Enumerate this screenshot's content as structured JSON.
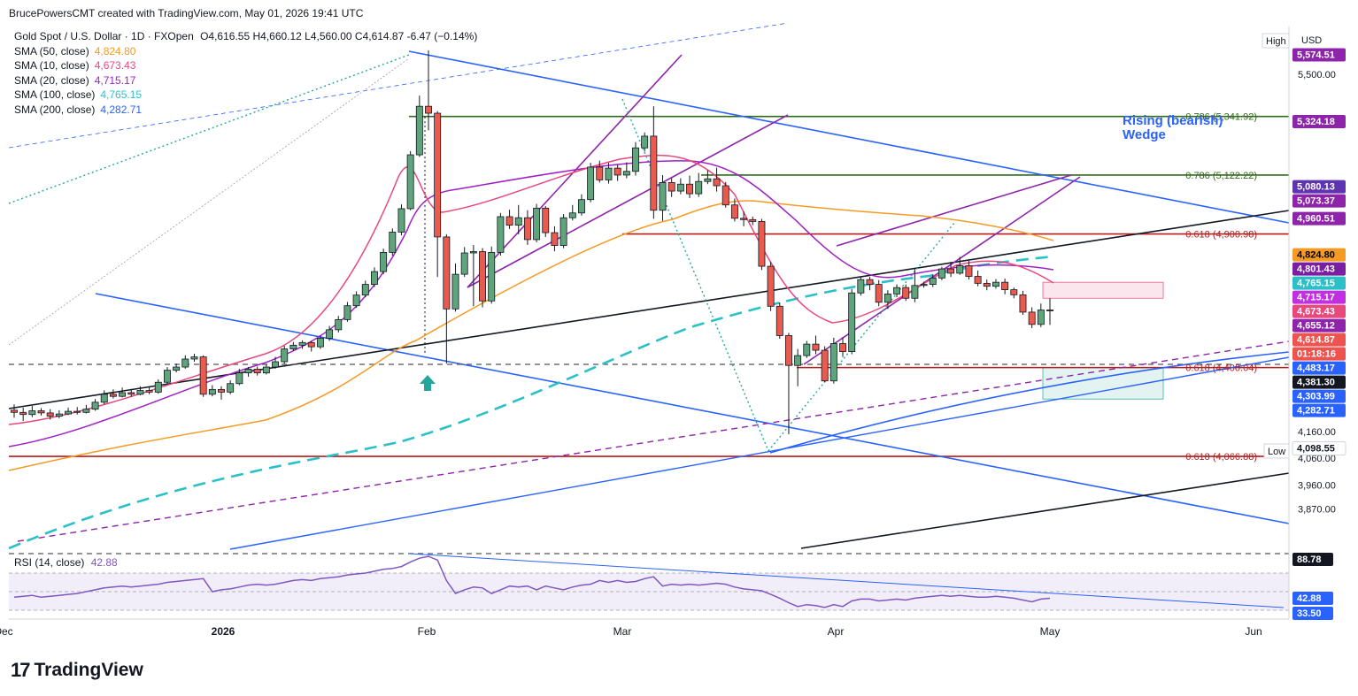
{
  "header": {
    "created_by": "BrucePowersCMT created with TradingView.com, May 01, 2026 19:41 UTC"
  },
  "legend": {
    "symbol": "Gold Spot / U.S. Dollar · 1D · FXOpen",
    "ohlc": "O4,616.55 H4,660.12 L4,560.00 C4,614.87 -6.47 (−0.14%)",
    "smas": [
      {
        "label": "SMA (50, close)",
        "value": "4,824.80",
        "color": "#f59a23"
      },
      {
        "label": "SMA (10, close)",
        "value": "4,673.43",
        "color": "#e8487c"
      },
      {
        "label": "SMA (20, close)",
        "value": "4,715.17",
        "color": "#a020c8"
      },
      {
        "label": "SMA (100, close)",
        "value": "4,765.15",
        "color": "#2bc0c8"
      },
      {
        "label": "SMA (200, close)",
        "value": "4,282.71",
        "color": "#2962ff"
      }
    ]
  },
  "axis": {
    "currency": "USD",
    "high_label": "High",
    "low_label": "Low",
    "ticks": [
      "5,500.00",
      "4,160.00",
      "4,060.00",
      "3,960.00",
      "3,870.00"
    ],
    "date_labels": [
      "Dec",
      "2026",
      "Feb",
      "Mar",
      "Apr",
      "May",
      "Jun"
    ]
  },
  "price_labels": [
    {
      "text": "5,574.51",
      "bg": "#8e24aa",
      "fg": "#ffffff",
      "price": 5574.51
    },
    {
      "text": "5,324.18",
      "bg": "#8e24aa",
      "fg": "#ffffff",
      "price": 5324.18
    },
    {
      "text": "5,080.13",
      "bg": "#5e35b1",
      "fg": "#ffffff",
      "price": 5080.13
    },
    {
      "text": "5,073.37",
      "bg": "#8e24aa",
      "fg": "#ffffff",
      "price": 5073.37
    },
    {
      "text": "4,960.51",
      "bg": "#8e24aa",
      "fg": "#ffffff",
      "price": 4960.51
    },
    {
      "text": "4,824.80",
      "bg": "#f59a23",
      "fg": "#000000",
      "price": 4824.8
    },
    {
      "text": "4,801.43",
      "bg": "#7b1fa2",
      "fg": "#ffffff",
      "price": 4801.43
    },
    {
      "text": "4,765.15",
      "bg": "#2bc0c8",
      "fg": "#ffffff",
      "price": 4765.15
    },
    {
      "text": "4,715.17",
      "bg": "#c030e0",
      "fg": "#ffffff",
      "price": 4715.17
    },
    {
      "text": "4,673.43",
      "bg": "#e8487c",
      "fg": "#ffffff",
      "price": 4673.43
    },
    {
      "text": "4,655.12",
      "bg": "#8e24aa",
      "fg": "#ffffff",
      "price": 4655.12
    },
    {
      "text": "4,614.87",
      "bg": "#ef5350",
      "fg": "#ffffff",
      "price": 4614.87
    },
    {
      "text": "01:18:16",
      "bg": "#ef5350",
      "fg": "#ffffff",
      "price": 4600
    },
    {
      "text": "4,483.17",
      "bg": "#2962ff",
      "fg": "#ffffff",
      "price": 4483.17
    },
    {
      "text": "4,381.30",
      "bg": "#131722",
      "fg": "#ffffff",
      "price": 4381.3
    },
    {
      "text": "4,303.99",
      "bg": "#2962ff",
      "fg": "#ffffff",
      "price": 4303.99
    },
    {
      "text": "4,282.71",
      "bg": "#2962ff",
      "fg": "#ffffff",
      "price": 4282.71
    },
    {
      "text": "4,098.55",
      "bg": "#ffffff",
      "fg": "#131722",
      "price": 4098.55
    }
  ],
  "fib_levels": [
    {
      "label": "0.786 (5,341.92)",
      "price": 5341.92,
      "color": "#33691e"
    },
    {
      "label": "0.786 (5,122.22)",
      "price": 5122.22,
      "color": "#33691e"
    },
    {
      "label": "0.618 (4,900.98)",
      "price": 4900.98,
      "color": "#b71c1c"
    },
    {
      "label": "0.618 (4,400.04)",
      "price": 4400.04,
      "color": "#b71c1c"
    },
    {
      "label": "0.618 (4,066.88)",
      "price": 4066.88,
      "color": "#b71c1c"
    }
  ],
  "annotation": {
    "text_line1": "Rising (bearish)",
    "text_line2": "Wedge"
  },
  "rsi": {
    "label": "RSI (14, close)",
    "value": "42.88",
    "upper_label": "88.78",
    "lower_label": "33.50"
  },
  "chart_data": {
    "type": "candlestick",
    "currency": "USD",
    "timeframe": "1D",
    "ohlc_last": {
      "open": 4616.55,
      "high": 4660.12,
      "low": 4560.0,
      "close": 4614.87
    },
    "y_ticks": [
      5500,
      4160,
      4060,
      3960,
      3870
    ],
    "candles": [
      [
        4240,
        4232,
        4262,
        4212
      ],
      [
        4232,
        4224,
        4250,
        4200
      ],
      [
        4224,
        4238,
        4256,
        4214
      ],
      [
        4238,
        4230,
        4248,
        4220
      ],
      [
        4230,
        4218,
        4244,
        4205
      ],
      [
        4218,
        4226,
        4240,
        4210
      ],
      [
        4226,
        4236,
        4250,
        4222
      ],
      [
        4236,
        4232,
        4252,
        4224
      ],
      [
        4232,
        4244,
        4260,
        4228
      ],
      [
        4244,
        4270,
        4282,
        4238
      ],
      [
        4270,
        4300,
        4315,
        4262
      ],
      [
        4300,
        4292,
        4318,
        4284
      ],
      [
        4292,
        4306,
        4325,
        4288
      ],
      [
        4306,
        4300,
        4320,
        4290
      ],
      [
        4300,
        4314,
        4330,
        4296
      ],
      [
        4314,
        4308,
        4326,
        4300
      ],
      [
        4308,
        4345,
        4356,
        4302
      ],
      [
        4345,
        4390,
        4402,
        4338
      ],
      [
        4390,
        4402,
        4415,
        4382
      ],
      [
        4402,
        4432,
        4446,
        4396
      ],
      [
        4432,
        4440,
        4452,
        4422
      ],
      [
        4440,
        4300,
        4446,
        4290
      ],
      [
        4300,
        4318,
        4334,
        4292
      ],
      [
        4318,
        4308,
        4330,
        4280
      ],
      [
        4308,
        4340,
        4352,
        4300
      ],
      [
        4340,
        4380,
        4395,
        4334
      ],
      [
        4380,
        4394,
        4402,
        4366
      ],
      [
        4394,
        4380,
        4404,
        4370
      ],
      [
        4380,
        4402,
        4412,
        4374
      ],
      [
        4402,
        4422,
        4440,
        4396
      ],
      [
        4422,
        4470,
        4482,
        4414
      ],
      [
        4470,
        4484,
        4496,
        4462
      ],
      [
        4484,
        4494,
        4502,
        4470
      ],
      [
        4494,
        4478,
        4500,
        4460
      ],
      [
        4478,
        4510,
        4520,
        4470
      ],
      [
        4510,
        4542,
        4556,
        4500
      ],
      [
        4542,
        4580,
        4594,
        4532
      ],
      [
        4580,
        4632,
        4646,
        4572
      ],
      [
        4632,
        4672,
        4686,
        4624
      ],
      [
        4672,
        4712,
        4726,
        4664
      ],
      [
        4712,
        4760,
        4776,
        4702
      ],
      [
        4760,
        4832,
        4846,
        4750
      ],
      [
        4832,
        4908,
        4922,
        4820
      ],
      [
        4908,
        4996,
        5012,
        4896
      ],
      [
        4996,
        5198,
        5212,
        4990
      ],
      [
        5198,
        5380,
        5420,
        5190
      ],
      [
        5380,
        5354,
        5590,
        5290
      ],
      [
        5354,
        4890,
        5362,
        4740
      ],
      [
        4890,
        4620,
        4900,
        4415
      ],
      [
        4620,
        4750,
        4790,
        4610
      ],
      [
        4750,
        4830,
        4852,
        4740
      ],
      [
        4830,
        4835,
        4860,
        4630
      ],
      [
        4835,
        4650,
        4848,
        4626
      ],
      [
        4650,
        4832,
        4854,
        4640
      ],
      [
        4832,
        4966,
        4980,
        4820
      ],
      [
        4966,
        4934,
        4992,
        4920
      ],
      [
        4934,
        4962,
        5010,
        4900
      ],
      [
        4962,
        4880,
        4990,
        4860
      ],
      [
        4880,
        4998,
        5014,
        4870
      ],
      [
        4998,
        4906,
        5006,
        4890
      ],
      [
        4906,
        4858,
        4930,
        4836
      ],
      [
        4858,
        4962,
        4976,
        4848
      ],
      [
        4962,
        4980,
        5010,
        4952
      ],
      [
        4980,
        5030,
        5050,
        4970
      ],
      [
        5030,
        5152,
        5168,
        5020
      ],
      [
        5152,
        5104,
        5176,
        5094
      ],
      [
        5104,
        5148,
        5168,
        5090
      ],
      [
        5148,
        5122,
        5160,
        5100
      ],
      [
        5122,
        5136,
        5170,
        5110
      ],
      [
        5136,
        5224,
        5246,
        5120
      ],
      [
        5224,
        5268,
        5282,
        5210
      ],
      [
        5268,
        4990,
        5380,
        4958
      ],
      [
        4990,
        5094,
        5122,
        4950
      ],
      [
        5094,
        5062,
        5110,
        5040
      ],
      [
        5062,
        5088,
        5110,
        5050
      ],
      [
        5088,
        5052,
        5120,
        5036
      ],
      [
        5052,
        5098,
        5130,
        5040
      ],
      [
        5098,
        5108,
        5140,
        5088
      ],
      [
        5108,
        5082,
        5150,
        5060
      ],
      [
        5082,
        5010,
        5096,
        5000
      ],
      [
        5010,
        4960,
        5034,
        4948
      ],
      [
        4960,
        4955,
        4985,
        4930
      ],
      [
        4955,
        4948,
        4966,
        4934
      ],
      [
        4948,
        4780,
        4958,
        4766
      ],
      [
        4780,
        4630,
        4796,
        4612
      ],
      [
        4630,
        4520,
        4644,
        4508
      ],
      [
        4520,
        4408,
        4530,
        4150
      ],
      [
        4408,
        4445,
        4470,
        4330
      ],
      [
        4445,
        4488,
        4500,
        4436
      ],
      [
        4488,
        4465,
        4520,
        4450
      ],
      [
        4465,
        4350,
        4480,
        4345
      ],
      [
        4350,
        4490,
        4512,
        4340
      ],
      [
        4490,
        4460,
        4514,
        4440
      ],
      [
        4460,
        4680,
        4695,
        4450
      ],
      [
        4680,
        4730,
        4742,
        4670
      ],
      [
        4730,
        4712,
        4740,
        4690
      ],
      [
        4712,
        4645,
        4728,
        4630
      ],
      [
        4645,
        4676,
        4690,
        4620
      ],
      [
        4676,
        4700,
        4712,
        4664
      ],
      [
        4700,
        4660,
        4712,
        4650
      ],
      [
        4660,
        4708,
        4770,
        4645
      ],
      [
        4708,
        4712,
        4722,
        4700
      ],
      [
        4712,
        4736,
        4750,
        4702
      ],
      [
        4736,
        4770,
        4778,
        4728
      ],
      [
        4770,
        4754,
        4796,
        4740
      ],
      [
        4754,
        4782,
        4815,
        4748
      ],
      [
        4782,
        4742,
        4800,
        4730
      ],
      [
        4742,
        4716,
        4764,
        4705
      ],
      [
        4716,
        4705,
        4730,
        4690
      ],
      [
        4705,
        4720,
        4732,
        4696
      ],
      [
        4720,
        4692,
        4734,
        4675
      ],
      [
        4692,
        4673,
        4700,
        4660
      ],
      [
        4673,
        4608,
        4688,
        4598
      ],
      [
        4608,
        4562,
        4626,
        4548
      ],
      [
        4562,
        4616,
        4640,
        4552
      ],
      [
        4616,
        4614.87,
        4660.12,
        4560
      ]
    ],
    "sma_series": [
      {
        "name": "SMA (50, close)",
        "last": 4824.8,
        "color": "#f59a23"
      },
      {
        "name": "SMA (10, close)",
        "last": 4673.43,
        "color": "#e8487c"
      },
      {
        "name": "SMA (20, close)",
        "last": 4715.17,
        "color": "#a020c8"
      },
      {
        "name": "SMA (100, close)",
        "last": 4765.15,
        "color": "#2bc0c8"
      },
      {
        "name": "SMA (200, close)",
        "last": 4282.71,
        "color": "#2962ff"
      }
    ],
    "rsi_values": [
      44,
      45,
      46,
      44,
      45,
      46,
      47,
      48,
      50,
      52,
      54,
      55,
      56,
      55,
      56,
      57,
      58,
      60,
      61,
      62,
      63,
      64,
      50,
      52,
      53,
      55,
      57,
      58,
      57,
      58,
      60,
      62,
      63,
      62,
      64,
      65,
      66,
      68,
      69,
      70,
      72,
      74,
      75,
      77,
      82,
      86,
      88,
      84,
      62,
      48,
      52,
      55,
      54,
      48,
      52,
      56,
      55,
      56,
      52,
      56,
      54,
      52,
      55,
      57,
      58,
      62,
      60,
      62,
      60,
      61,
      64,
      66,
      56,
      58,
      57,
      58,
      57,
      58,
      59,
      58,
      55,
      53,
      52,
      51,
      47,
      43,
      38,
      34,
      36,
      35,
      33,
      36,
      34,
      40,
      42,
      42,
      40,
      41,
      42,
      41,
      43,
      44,
      45,
      46,
      45,
      46,
      45,
      44,
      44,
      45,
      44,
      43,
      41,
      39,
      42,
      42.88
    ]
  }
}
